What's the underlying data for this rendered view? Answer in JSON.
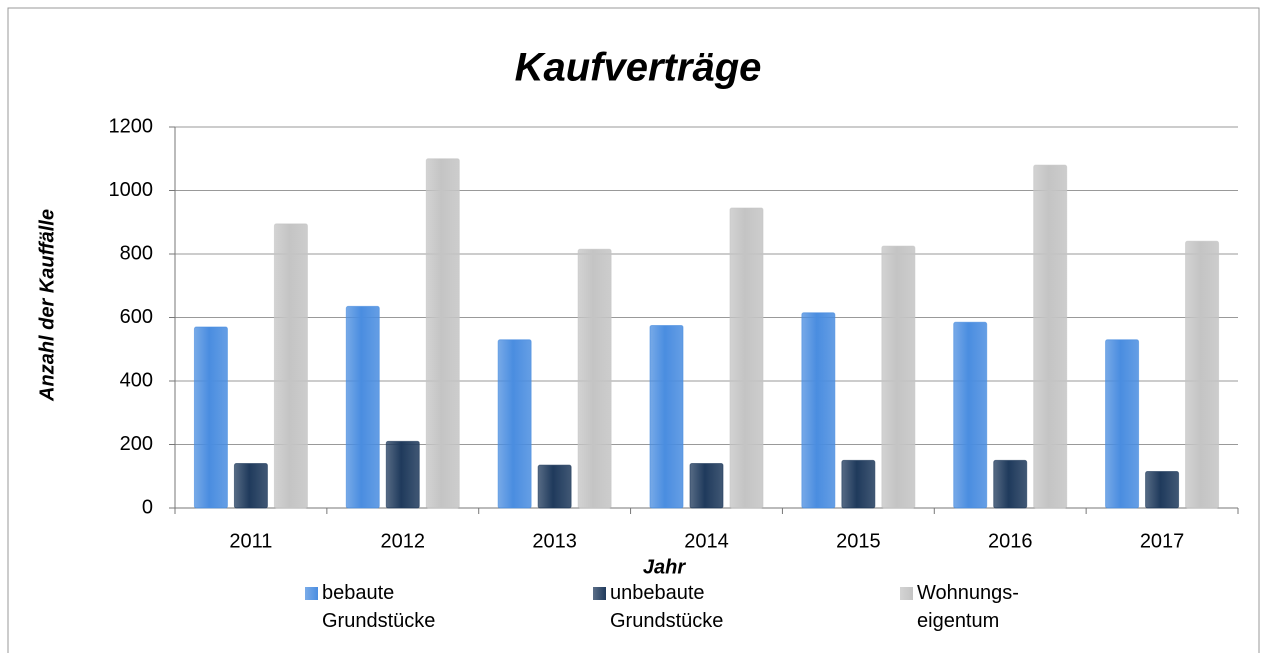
{
  "chart_data": {
    "type": "bar",
    "title": "Kaufverträge",
    "x_label": "Jahr",
    "y_label": "Anzahl der Kauffälle",
    "categories": [
      "2011",
      "2012",
      "2013",
      "2014",
      "2015",
      "2016",
      "2017"
    ],
    "series": [
      {
        "name": "bebaute Grundstücke",
        "color": "#4a8de0",
        "values": [
          570,
          635,
          530,
          575,
          615,
          585,
          530
        ]
      },
      {
        "name": "unbebaute Grundstücke",
        "color": "#1f3a5c",
        "values": [
          140,
          210,
          135,
          140,
          150,
          150,
          115
        ]
      },
      {
        "name": "Wohnungs-eigentum",
        "color": "#c4c4c4",
        "values": [
          895,
          1100,
          815,
          945,
          825,
          1080,
          840
        ]
      }
    ],
    "ylim": [
      0,
      1200
    ],
    "yticks": [
      0,
      200,
      400,
      600,
      800,
      1000,
      1200
    ],
    "grid": true
  }
}
